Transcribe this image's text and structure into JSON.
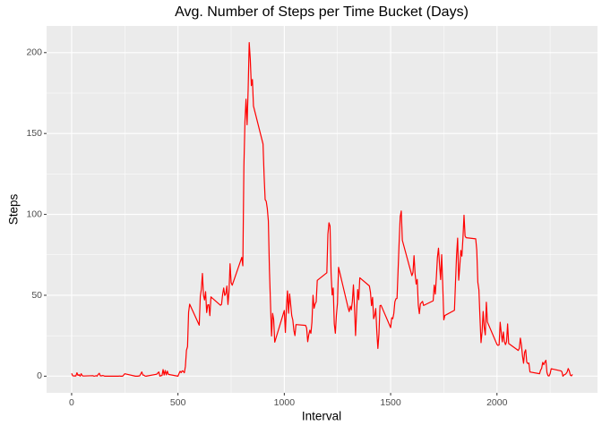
{
  "chart_data": {
    "type": "line",
    "title": "Avg. Number of Steps per Time Bucket (Days)",
    "x_label": "Interval",
    "y_label": "Steps",
    "x": [
      0,
      5,
      10,
      15,
      20,
      25,
      30,
      35,
      40,
      45,
      50,
      55,
      100,
      105,
      110,
      115,
      120,
      125,
      130,
      135,
      140,
      145,
      150,
      155,
      200,
      220,
      225,
      230,
      240,
      250,
      300,
      310,
      320,
      330,
      335,
      340,
      345,
      350,
      400,
      410,
      415,
      420,
      425,
      430,
      435,
      440,
      445,
      450,
      455,
      500,
      505,
      510,
      515,
      520,
      525,
      530,
      535,
      540,
      545,
      550,
      555,
      600,
      605,
      610,
      615,
      620,
      625,
      630,
      635,
      640,
      645,
      650,
      655,
      700,
      705,
      710,
      715,
      720,
      725,
      730,
      735,
      740,
      745,
      750,
      755,
      800,
      805,
      810,
      815,
      820,
      825,
      830,
      835,
      840,
      845,
      850,
      855,
      900,
      905,
      910,
      915,
      920,
      925,
      930,
      935,
      940,
      945,
      950,
      955,
      1000,
      1005,
      1010,
      1015,
      1020,
      1025,
      1030,
      1035,
      1040,
      1045,
      1050,
      1055,
      1100,
      1105,
      1110,
      1115,
      1120,
      1125,
      1130,
      1135,
      1140,
      1145,
      1150,
      1155,
      1200,
      1205,
      1210,
      1215,
      1220,
      1225,
      1230,
      1235,
      1240,
      1245,
      1250,
      1255,
      1300,
      1305,
      1310,
      1315,
      1320,
      1325,
      1330,
      1335,
      1340,
      1345,
      1350,
      1355,
      1400,
      1405,
      1410,
      1415,
      1420,
      1425,
      1430,
      1435,
      1440,
      1445,
      1450,
      1455,
      1500,
      1505,
      1510,
      1515,
      1520,
      1525,
      1530,
      1535,
      1540,
      1545,
      1550,
      1555,
      1600,
      1605,
      1610,
      1615,
      1620,
      1625,
      1630,
      1635,
      1640,
      1645,
      1650,
      1655,
      1700,
      1705,
      1710,
      1715,
      1720,
      1725,
      1730,
      1735,
      1740,
      1745,
      1750,
      1755,
      1800,
      1805,
      1810,
      1815,
      1820,
      1825,
      1830,
      1835,
      1840,
      1845,
      1850,
      1855,
      1900,
      1905,
      1910,
      1915,
      1920,
      1925,
      1930,
      1935,
      1940,
      1945,
      1950,
      1955,
      2000,
      2005,
      2010,
      2015,
      2020,
      2025,
      2030,
      2035,
      2040,
      2045,
      2050,
      2055,
      2100,
      2105,
      2110,
      2115,
      2120,
      2125,
      2130,
      2135,
      2140,
      2145,
      2150,
      2155,
      2200,
      2205,
      2210,
      2215,
      2220,
      2225,
      2230,
      2235,
      2240,
      2245,
      2250,
      2255,
      2300,
      2305,
      2310,
      2315,
      2320,
      2325,
      2330,
      2335,
      2340,
      2345,
      2350,
      2355
    ],
    "values": [
      1.7,
      0.3,
      0.1,
      0.2,
      0.1,
      2.1,
      0.5,
      0.9,
      0,
      1.5,
      0.3,
      0.1,
      0.3,
      0,
      0.1,
      0.3,
      0,
      1.1,
      1.8,
      0.2,
      0.2,
      0.4,
      0.3,
      0,
      0,
      0,
      0.1,
      0,
      0,
      1.5,
      0,
      0,
      0.2,
      2.6,
      0.7,
      0.6,
      0.1,
      0,
      1.2,
      2.6,
      0,
      0.3,
      0.4,
      4.1,
      0.7,
      3.5,
      0.8,
      3.1,
      1.1,
      0,
      1.6,
      3,
      2.2,
      3.3,
      3,
      2.1,
      6.1,
      16,
      18.3,
      39.5,
      44.5,
      31.5,
      49.3,
      53.8,
      63.5,
      50,
      47.1,
      52.2,
      39.3,
      44,
      44.2,
      37.4,
      49,
      43.8,
      44.4,
      50.5,
      54.5,
      49.9,
      51,
      55.7,
      44.3,
      52.3,
      69.5,
      57.8,
      56.2,
      73.4,
      68.2,
      129.4,
      157.5,
      171.2,
      155.4,
      177.3,
      206.2,
      195.9,
      179.6,
      183.4,
      167,
      143.5,
      124,
      109.1,
      108.1,
      103.7,
      96,
      66.2,
      45.2,
      24.8,
      38.8,
      35,
      21,
      40.6,
      27,
      42.4,
      52.7,
      38.9,
      50.8,
      44.3,
      37.4,
      34.7,
      28.3,
      25.1,
      31.9,
      31.4,
      29.7,
      21.3,
      25.5,
      28.4,
      26.5,
      33.4,
      50,
      42,
      44.6,
      46,
      59.2,
      63.9,
      87.7,
      94.8,
      92.8,
      63.4,
      50.2,
      54.5,
      32.4,
      26.5,
      37.7,
      45.1,
      67.3,
      42.3,
      39.9,
      43.3,
      41,
      46.2,
      56.4,
      42.8,
      25.1,
      40,
      53.5,
      47.3,
      60.8,
      55.8,
      52,
      43.6,
      48.7,
      35.5,
      37.5,
      41.8,
      27.5,
      17.1,
      26.1,
      43.6,
      43.8,
      30,
      36.1,
      35.5,
      38.8,
      46,
      47.8,
      48.1,
      65.3,
      82.9,
      98.7,
      102.1,
      84,
      62.1,
      64.1,
      74.5,
      63.2,
      56.9,
      59.8,
      43.9,
      38.6,
      44.7,
      45.5,
      46.2,
      43.7,
      46.6,
      56.3,
      50.7,
      61.2,
      73.4,
      79.1,
      68.9,
      59.7,
      75.1,
      56.5,
      34.8,
      37.5,
      40.7,
      58,
      74.7,
      85.3,
      59.3,
      67.8,
      77.7,
      74.2,
      85.3,
      99.5,
      86.6,
      85.6,
      84.9,
      77.8,
      58,
      53.4,
      36.3,
      20.7,
      27.4,
      40,
      30.2,
      25.5,
      45.7,
      33.5,
      19.6,
      19,
      19.3,
      33.3,
      26.8,
      21.2,
      27.3,
      21.3,
      19.5,
      21.3,
      32.3,
      20.2,
      15.9,
      17.2,
      23.5,
      19.2,
      12.5,
      8,
      14.7,
      16.3,
      8.7,
      7.8,
      8.1,
      2.6,
      1.5,
      3.7,
      4.8,
      8.5,
      7.1,
      8.7,
      9.8,
      2.2,
      0.3,
      0.1,
      1.6,
      4.6,
      3.3,
      2.8,
      0,
      0.8,
      1,
      1.6,
      2.6,
      4.7,
      3.3,
      0.6,
      0.2,
      1.1
    ],
    "color": "#ff0000",
    "xlim": [
      -117.75,
      2472.75
    ],
    "xticks": [
      0,
      500,
      1000,
      1500,
      2000
    ],
    "ylim": [
      -10.31,
      216.48
    ],
    "yticks": [
      0,
      50,
      100,
      150,
      200
    ],
    "grid": true
  }
}
